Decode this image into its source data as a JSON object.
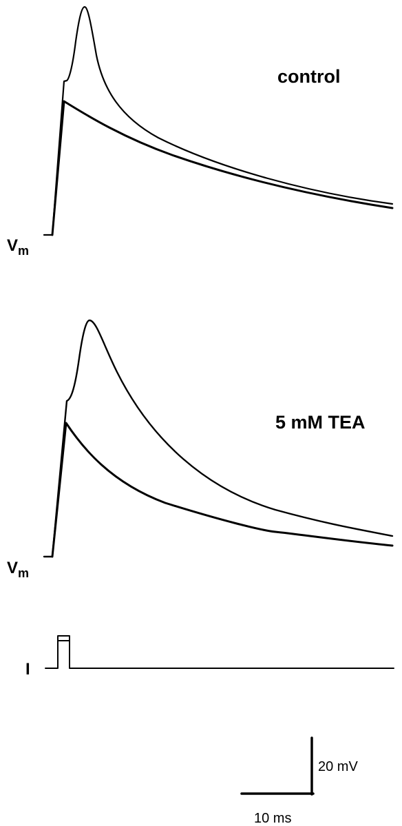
{
  "panels": [
    {
      "label": "control",
      "trace_label": {
        "main": "V",
        "subscript": "m"
      }
    },
    {
      "label": "5 mM TEA",
      "trace_label": {
        "main": "V",
        "subscript": "m"
      }
    }
  ],
  "current_label": "I",
  "scale_bar": {
    "vertical": "20 mV",
    "horizontal": "10 ms"
  }
}
